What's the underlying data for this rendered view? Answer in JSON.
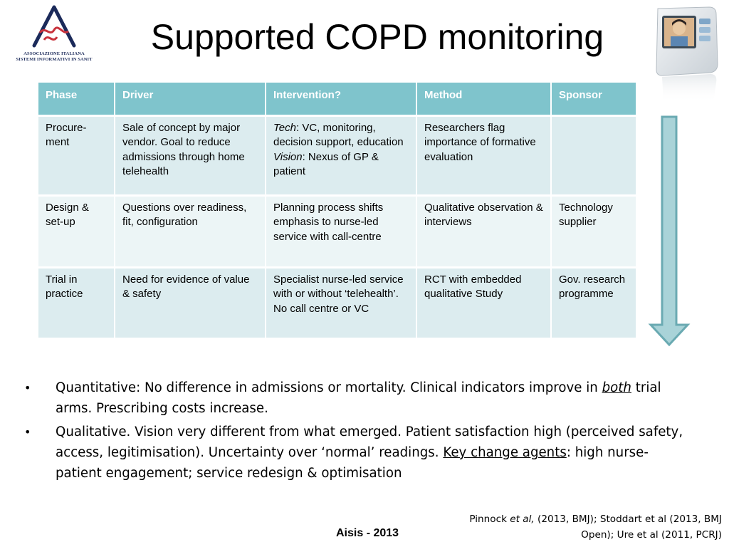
{
  "logo": {
    "text_line1": "ASSOCIAZIONE ITALIANA",
    "text_line2": "SISTEMI INFORMATIVI IN SANIT"
  },
  "title": "Supported COPD monitoring",
  "table": {
    "headers": [
      "Phase",
      "Driver",
      "Intervention?",
      "Method",
      "Sponsor"
    ],
    "rows": [
      {
        "phase": "Procure-ment",
        "driver": "Sale of concept by major vendor. Goal to reduce admissions through home telehealth",
        "intervention_tech_label": "Tech",
        "intervention_tech_text": ": VC, monitoring, decision support, education",
        "intervention_vision_label": "Vision",
        "intervention_vision_text": ": Nexus of GP & patient",
        "method": "Researchers flag importance of formative evaluation",
        "sponsor": ""
      },
      {
        "phase": "Design & set-up",
        "driver": "Questions over readiness, fit, configuration",
        "intervention": "Planning process shifts emphasis to nurse-led service with call-centre",
        "method": "Qualitative observation & interviews",
        "sponsor": "Technology supplier"
      },
      {
        "phase": "Trial in practice",
        "driver": "Need for evidence of value  & safety",
        "intervention": "Specialist nurse-led service with or without ‘telehealth’. No call centre or VC",
        "method": "RCT with embedded qualitative Study",
        "sponsor": "Gov. research programme"
      }
    ]
  },
  "bullets": [
    {
      "pre": "Quantitative: No difference in admissions or mortality. Clinical indicators improve in ",
      "underlined": "both",
      "post": " trial arms. Prescribing costs increase."
    },
    {
      "pre": "Qualitative. Vision very different from what emerged. Patient satisfaction high (perceived safety, access, legitimisation). Uncertainty over ‘normal’ readings. ",
      "underlined": "Key change agents",
      "post": ": high nurse-patient engagement; service redesign & optimisation"
    }
  ],
  "references": {
    "author": "Pinnock ",
    "etal": "et al,",
    "rest": "  (2013, BMJ); Stoddart et al (2013, BMJ Open); Ure et al (2011, PCRJ)"
  },
  "footer": "Aisis - 2013",
  "colors": {
    "header_bg": "#7fc4cc",
    "row_light": "#dcecef",
    "row_lighter": "#ecf5f6",
    "arrow_fill": "#a9d3d8",
    "arrow_stroke": "#6aaab2"
  }
}
